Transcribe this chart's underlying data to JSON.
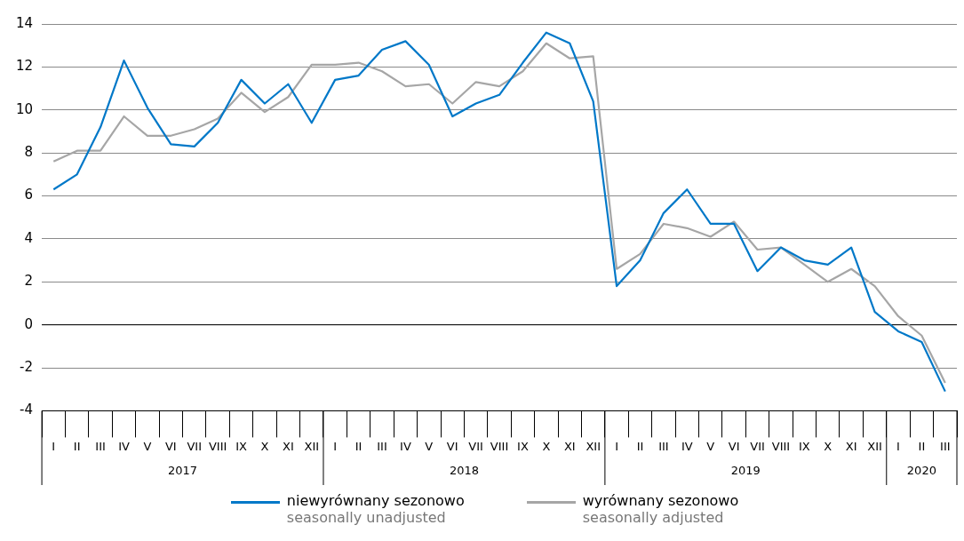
{
  "chart_data": {
    "type": "line",
    "categories": [
      "I",
      "II",
      "III",
      "IV",
      "V",
      "VI",
      "VII",
      "VIII",
      "IX",
      "X",
      "XI",
      "XII",
      "I",
      "II",
      "III",
      "IV",
      "V",
      "VI",
      "VII",
      "VIII",
      "IX",
      "X",
      "XI",
      "XII",
      "I",
      "II",
      "III",
      "IV",
      "V",
      "VI",
      "VII",
      "VIII",
      "IX",
      "X",
      "XI",
      "XII",
      "I",
      "II",
      "III"
    ],
    "series": [
      {
        "name": "niewyrównany sezonowo\nseasonally unadjusted",
        "color": "#0078c8",
        "values": [
          6.3,
          7.0,
          9.2,
          12.3,
          10.1,
          8.4,
          8.3,
          9.4,
          11.4,
          10.3,
          11.2,
          9.4,
          11.4,
          11.6,
          12.8,
          13.2,
          12.1,
          9.7,
          10.3,
          10.7,
          12.2,
          13.6,
          13.1,
          10.4,
          1.8,
          3.0,
          5.2,
          6.3,
          4.7,
          4.7,
          2.5,
          3.6,
          3.0,
          2.8,
          3.6,
          0.6,
          -0.3,
          -0.8,
          -3.1
        ]
      },
      {
        "name": "wyrównany sezonowo\nseasonally adjusted",
        "color": "#a6a6a6",
        "values": [
          7.6,
          8.1,
          8.1,
          9.7,
          8.8,
          8.8,
          9.1,
          9.6,
          10.8,
          9.9,
          10.6,
          12.1,
          12.1,
          12.2,
          11.8,
          11.1,
          11.2,
          10.3,
          11.3,
          11.1,
          11.8,
          13.1,
          12.4,
          12.5,
          2.6,
          3.3,
          4.7,
          4.5,
          4.1,
          4.8,
          3.5,
          3.6,
          2.8,
          2.0,
          2.6,
          1.8,
          0.4,
          -0.5,
          -2.7
        ]
      }
    ],
    "annotations": [
      "2017",
      "2018",
      "2019",
      "2020"
    ],
    "ylim": [
      -4,
      14
    ],
    "yticks": [
      -4,
      -2,
      0,
      2,
      4,
      6,
      8,
      10,
      12,
      14
    ],
    "grid": "y",
    "legend": "bottom",
    "marker": "none",
    "line_style": "solid"
  }
}
